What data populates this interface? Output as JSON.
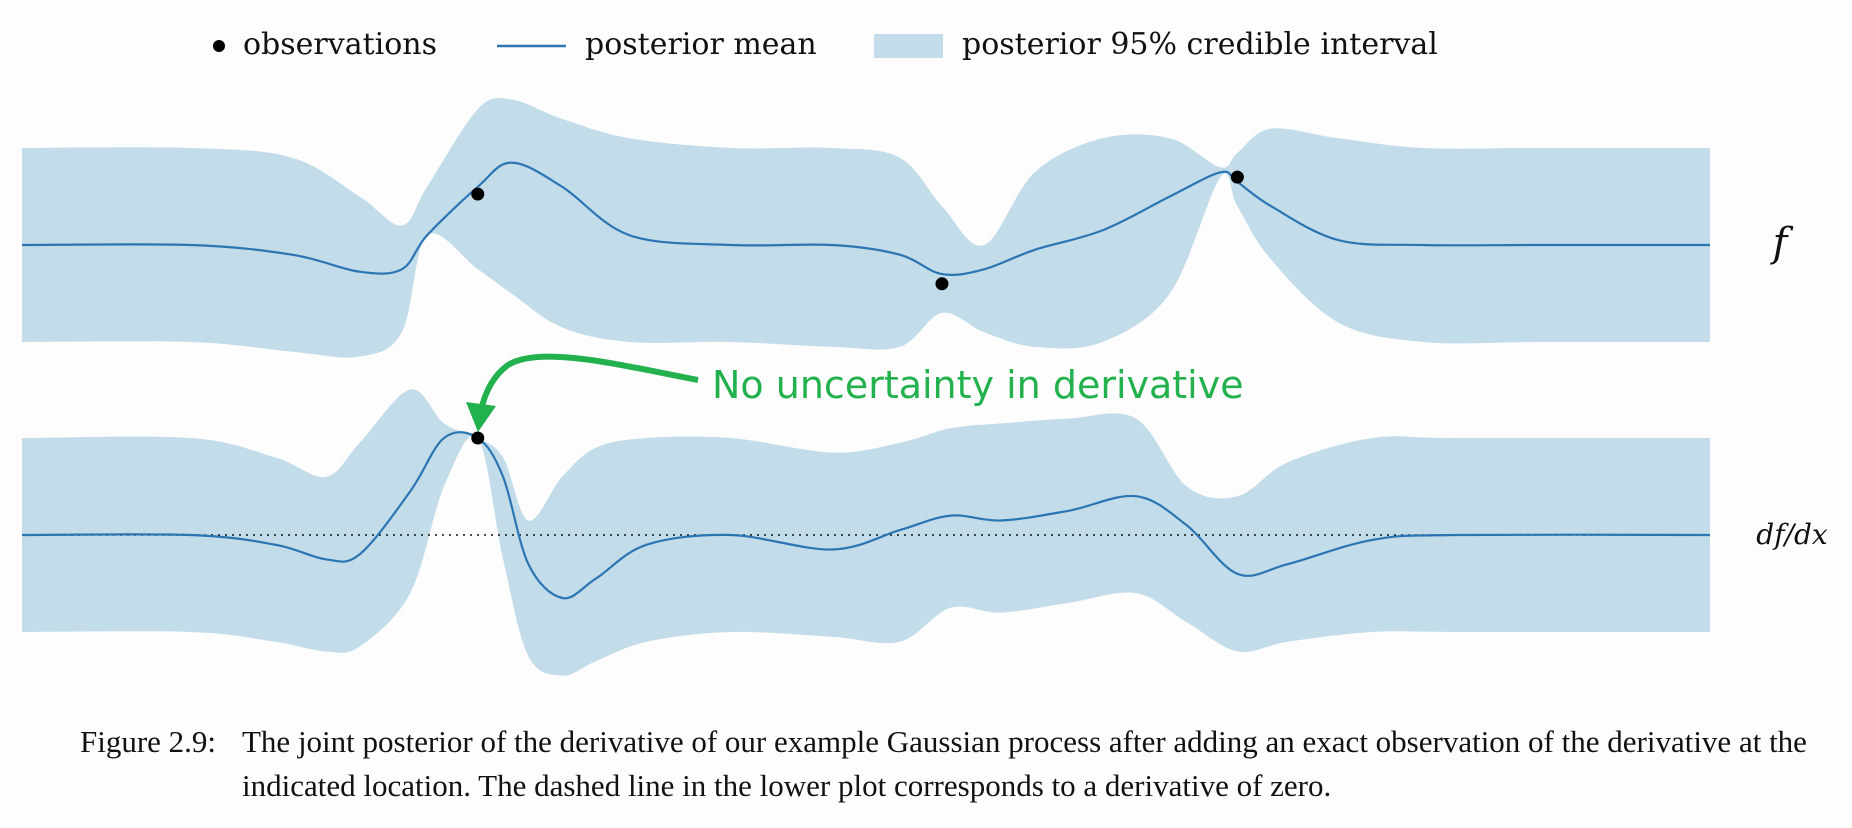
{
  "legend": {
    "observations": "observations",
    "mean": "posterior mean",
    "interval": "posterior 95% credible interval"
  },
  "colors": {
    "band": "#c2dcea",
    "mean": "#2b75b3",
    "point": "#000000",
    "annotation": "#22b14c",
    "text": "#111111"
  },
  "annotation": {
    "text": "No uncertainty in derivative"
  },
  "caption": {
    "label": "Figure 2.9:",
    "text": "The joint posterior of the derivative of our example Gaussian process after adding an exact observation of the derivative at the indicated location. The dashed line in the lower plot corresponds to a derivative of zero."
  },
  "chart_data": [
    {
      "type": "area",
      "panel": "f",
      "ylabel": "f",
      "xlim": [
        0,
        1
      ],
      "ylim": [
        -3.2,
        3.2
      ],
      "grid": false,
      "legend_placement": "top",
      "x": [
        0,
        0.1,
        0.16,
        0.2,
        0.225,
        0.24,
        0.27,
        0.29,
        0.32,
        0.36,
        0.42,
        0.48,
        0.52,
        0.545,
        0.57,
        0.6,
        0.64,
        0.68,
        0.71,
        0.72,
        0.74,
        0.78,
        0.83,
        0.9,
        1.0
      ],
      "mean": [
        0,
        0,
        -0.2,
        -0.55,
        -0.5,
        0.2,
        1.2,
        1.7,
        1.2,
        0.2,
        0,
        0,
        -0.2,
        -0.6,
        -0.5,
        -0.1,
        0.3,
        1.0,
        1.5,
        1.3,
        0.8,
        0.1,
        0,
        0,
        0
      ],
      "upper": [
        2.0,
        2.0,
        1.8,
        1.0,
        0.4,
        1.2,
        2.8,
        3.0,
        2.6,
        2.2,
        2.0,
        2.0,
        1.8,
        0.8,
        0.0,
        1.5,
        2.2,
        2.2,
        1.6,
        1.9,
        2.4,
        2.2,
        2.0,
        2.0,
        2.0
      ],
      "lower": [
        -2.0,
        -2.0,
        -2.2,
        -2.3,
        -1.8,
        0.2,
        -0.5,
        -1.0,
        -1.7,
        -2.0,
        -2.0,
        -2.1,
        -2.1,
        -1.4,
        -1.8,
        -2.1,
        -2.0,
        -1.0,
        1.4,
        0.8,
        -0.3,
        -1.6,
        -2.0,
        -2.0,
        -2.0
      ],
      "observations": [
        {
          "x": 0.27,
          "y": 1.05
        },
        {
          "x": 0.545,
          "y": -0.8
        },
        {
          "x": 0.72,
          "y": 1.4
        }
      ]
    },
    {
      "type": "area",
      "panel": "df/dx",
      "ylabel": "df/dx",
      "xlim": [
        0,
        1
      ],
      "ylim": [
        -3.2,
        3.2
      ],
      "grid": false,
      "zero_line": "dotted",
      "x": [
        0,
        0.1,
        0.15,
        0.18,
        0.2,
        0.23,
        0.25,
        0.27,
        0.285,
        0.3,
        0.32,
        0.34,
        0.37,
        0.42,
        0.48,
        0.52,
        0.55,
        0.58,
        0.62,
        0.66,
        0.69,
        0.72,
        0.75,
        0.8,
        0.85,
        1.0
      ],
      "mean": [
        0,
        0,
        -0.2,
        -0.5,
        -0.4,
        0.9,
        2.0,
        2.0,
        1.2,
        -0.6,
        -1.3,
        -0.9,
        -0.2,
        0,
        -0.3,
        0.1,
        0.4,
        0.3,
        0.5,
        0.8,
        0.2,
        -0.8,
        -0.6,
        -0.1,
        0,
        0
      ],
      "upper": [
        2.0,
        2.0,
        1.6,
        1.2,
        1.9,
        3.0,
        2.3,
        2.0,
        1.6,
        0.3,
        1.2,
        1.8,
        2.0,
        2.0,
        1.7,
        1.9,
        2.2,
        2.3,
        2.4,
        2.4,
        1.0,
        0.8,
        1.5,
        2.0,
        2.0,
        2.0
      ],
      "lower": [
        -2.0,
        -2.0,
        -2.2,
        -2.4,
        -2.3,
        -1.2,
        1.0,
        2.0,
        -0.5,
        -2.5,
        -2.9,
        -2.6,
        -2.2,
        -2.0,
        -2.1,
        -2.2,
        -1.5,
        -1.6,
        -1.4,
        -1.2,
        -1.8,
        -2.4,
        -2.2,
        -2.0,
        -2.0,
        -2.0
      ],
      "observations": [
        {
          "x": 0.27,
          "y": 2.0
        }
      ]
    }
  ]
}
